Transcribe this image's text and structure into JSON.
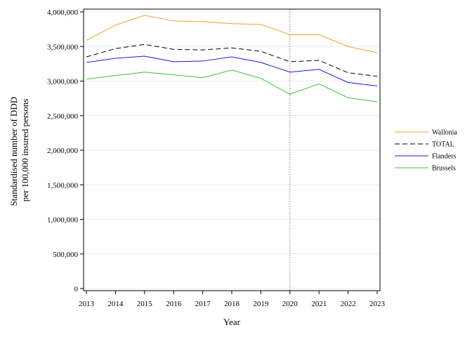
{
  "chart_data": {
    "type": "line",
    "xlabel": "Year",
    "ylabel": [
      "Standardised number of DDD",
      "per 100,000 insured persons"
    ],
    "x": [
      2013,
      2014,
      2015,
      2016,
      2017,
      2018,
      2019,
      2020,
      2021,
      2022,
      2023
    ],
    "x_tick_labels": [
      "2013",
      "2014",
      "2015",
      "2016",
      "2017",
      "2018",
      "2019",
      "2020",
      "2021",
      "2022",
      "2023"
    ],
    "ylim": [
      0,
      4000000
    ],
    "y_ticks": [
      0,
      500000,
      1000000,
      1500000,
      2000000,
      2500000,
      3000000,
      3500000,
      4000000
    ],
    "y_tick_labels": [
      "0",
      "500,000",
      "1,000,000",
      "1,500,000",
      "2,000,000",
      "2,500,000",
      "3,000,000",
      "3,500,000",
      "4,000,000"
    ],
    "grid": "horizontal, light",
    "reference_line": {
      "x": 2020,
      "style": "dotted",
      "color": "#c06080"
    },
    "legend_position": "right",
    "series": [
      {
        "name": "Wallonia",
        "color": "#f0a030",
        "dash": "solid",
        "values": [
          3590000,
          3810000,
          3950000,
          3870000,
          3860000,
          3830000,
          3820000,
          3670000,
          3670000,
          3500000,
          3410000
        ]
      },
      {
        "name": "TOTAL",
        "color": "#000000",
        "dash": "dashed",
        "values": [
          3350000,
          3470000,
          3530000,
          3460000,
          3450000,
          3480000,
          3430000,
          3280000,
          3300000,
          3120000,
          3070000
        ]
      },
      {
        "name": "Flanders",
        "color": "#1a1ad0",
        "dash": "solid",
        "values": [
          3270000,
          3330000,
          3360000,
          3280000,
          3290000,
          3350000,
          3270000,
          3130000,
          3170000,
          2980000,
          2930000
        ]
      },
      {
        "name": "Brussels",
        "color": "#3cc03c",
        "dash": "solid",
        "values": [
          3030000,
          3080000,
          3130000,
          3090000,
          3050000,
          3160000,
          3040000,
          2810000,
          2960000,
          2760000,
          2700000
        ]
      }
    ]
  }
}
